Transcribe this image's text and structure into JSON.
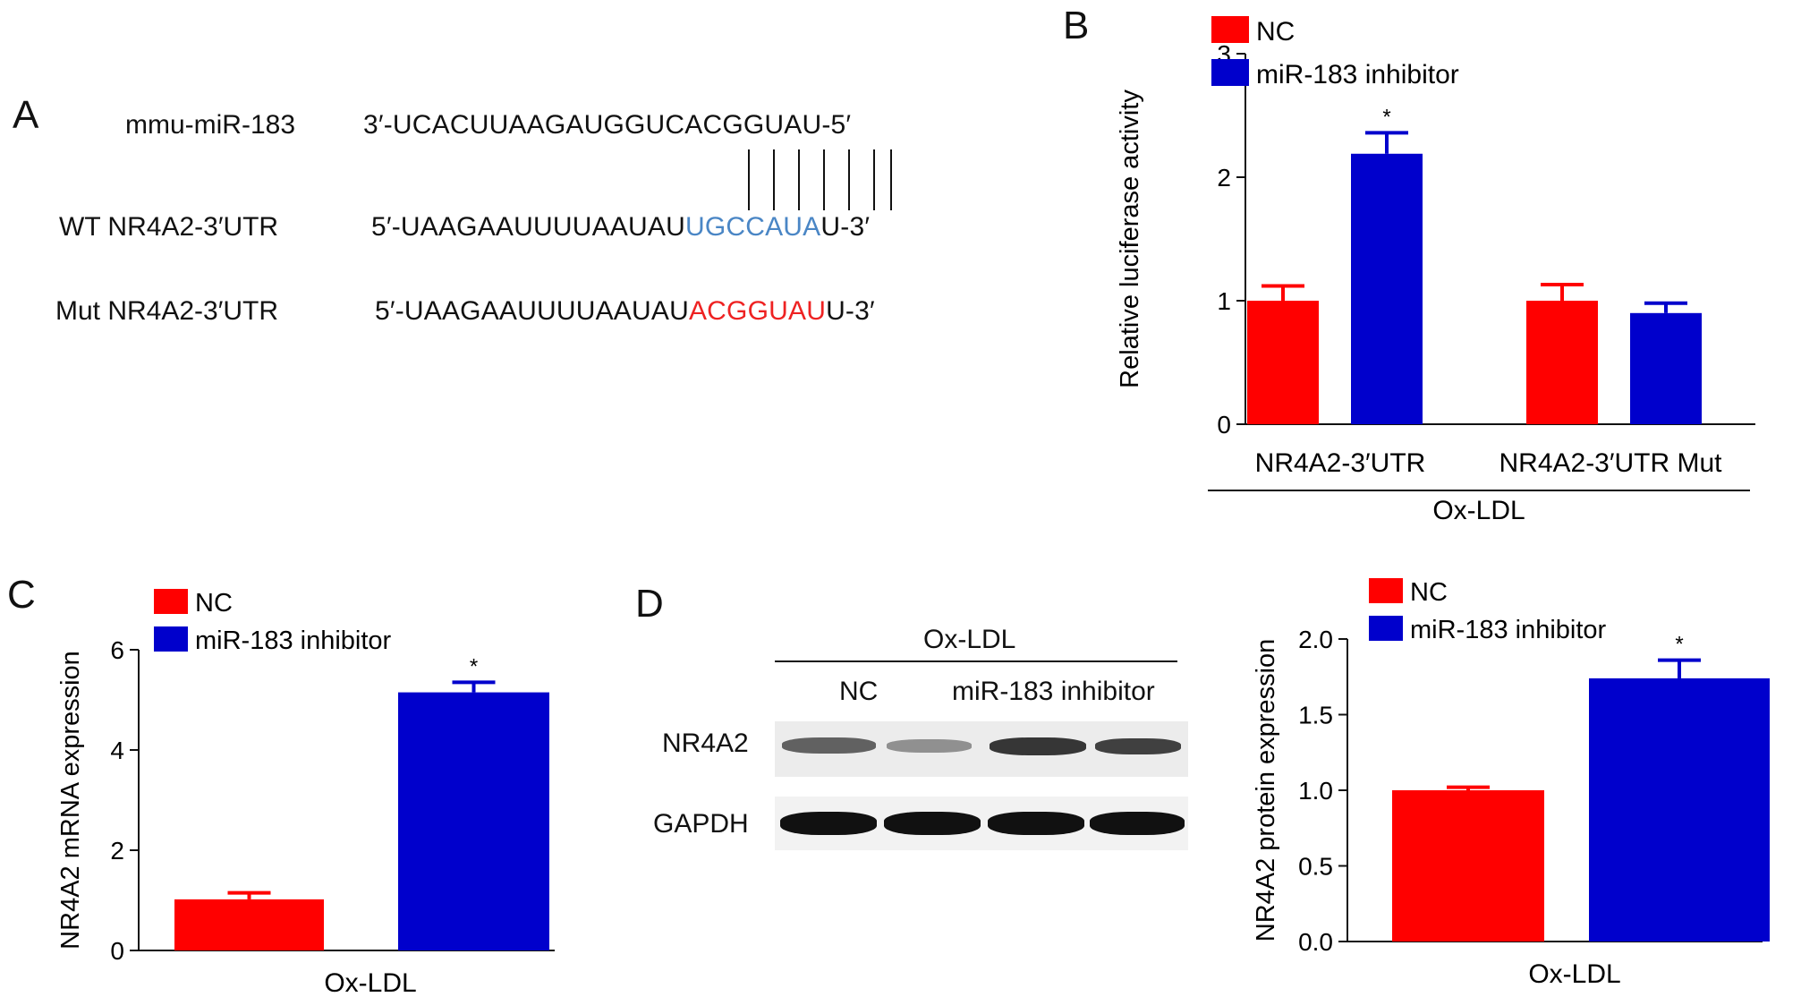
{
  "colors": {
    "nc": "#ff0000",
    "inhibitor": "#0000cc",
    "wt_site": "#4a86c5",
    "mut_site": "#ee2222",
    "axis": "#111111"
  },
  "panel_A": {
    "letter": "A",
    "rows": [
      {
        "label": "mmu-miR-183",
        "prefix": "3′-UCACUUAAGAUGGUCACGGUAU-5′",
        "site": "",
        "suffix": ""
      },
      {
        "label": "WT NR4A2-3′UTR",
        "prefix": "5′-UAAGAAUUUUAAUAU",
        "site": "UGCCAUA",
        "suffix": "U-3′"
      },
      {
        "label": "Mut NR4A2-3′UTR",
        "prefix": "5′-UAAGAAUUUUAAUAU",
        "site": "ACGGUAU",
        "suffix": "U-3′"
      }
    ]
  },
  "panel_B": {
    "letter": "B"
  },
  "panel_C": {
    "letter": "C"
  },
  "panel_D": {
    "letter": "D",
    "blot": {
      "group_label": "Ox-LDL",
      "lane_labels": [
        "NC",
        "miR-183 inhibitor"
      ],
      "rows": [
        "NR4A2",
        "GAPDH"
      ],
      "nr4a2_band_intensity": [
        0.75,
        0.5,
        0.9,
        0.85
      ],
      "gapdh_band_intensity": [
        1,
        1,
        1,
        1
      ]
    }
  },
  "chart_data": [
    {
      "type": "bar",
      "panel": "B",
      "ylabel": "Relative luciferase activity",
      "ylim": [
        0,
        3
      ],
      "yticks": [
        "0",
        "1",
        "2",
        "3"
      ],
      "categories": [
        "NR4A2-3′UTR",
        "NR4A2-3′UTR Mut"
      ],
      "group_label": "Ox-LDL",
      "series": [
        {
          "name": "NC",
          "values": [
            1.0,
            1.0
          ],
          "errors": [
            0.12,
            0.13
          ]
        },
        {
          "name": "miR-183 inhibitor",
          "values": [
            2.19,
            0.9
          ],
          "errors": [
            0.17,
            0.08
          ]
        }
      ],
      "significance": [
        null,
        "*",
        null,
        null
      ],
      "legend": "top-left"
    },
    {
      "type": "bar",
      "panel": "C",
      "ylabel": "NR4A2 mRNA expression",
      "ylim": [
        0,
        6
      ],
      "yticks": [
        "0",
        "2",
        "4",
        "6"
      ],
      "categories": [
        "Ox-LDL"
      ],
      "series": [
        {
          "name": "NC",
          "values": [
            1.02
          ],
          "errors": [
            0.13
          ]
        },
        {
          "name": "miR-183 inhibitor",
          "values": [
            5.15
          ],
          "errors": [
            0.2
          ]
        }
      ],
      "significance": [
        null,
        "*"
      ],
      "legend": "top-left"
    },
    {
      "type": "bar",
      "panel": "D",
      "ylabel": "NR4A2 protein expression",
      "ylim": [
        0,
        2.0
      ],
      "yticks": [
        "0.0",
        "0.5",
        "1.0",
        "1.5",
        "2.0"
      ],
      "categories": [
        "Ox-LDL"
      ],
      "series": [
        {
          "name": "NC",
          "values": [
            1.0
          ],
          "errors": [
            0.02
          ]
        },
        {
          "name": "miR-183 inhibitor",
          "values": [
            1.74
          ],
          "errors": [
            0.12
          ]
        }
      ],
      "significance": [
        null,
        "*"
      ],
      "legend": "top-left"
    }
  ]
}
